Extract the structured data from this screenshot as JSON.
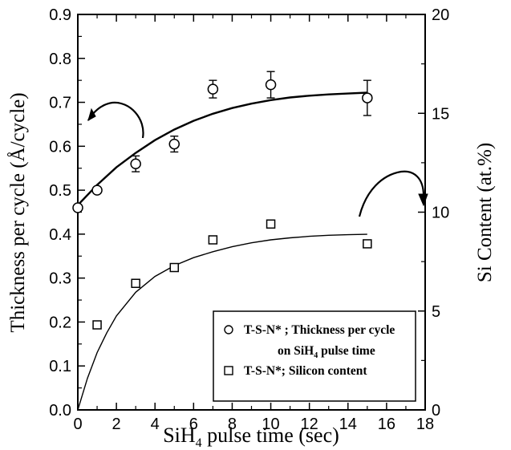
{
  "chart_data": {
    "type": "scatter",
    "xlabel": {
      "main": "SiH",
      "sub": "4",
      "rest": " pulse time (sec)"
    },
    "ylabel_left": "Thickness per cycle (Å/cycle)",
    "ylabel_right": "Si Content (at.%)",
    "xlim": [
      0,
      18
    ],
    "ylim_left": [
      0.0,
      0.9
    ],
    "ylim_right": [
      0,
      20
    ],
    "x_ticks": [
      "0",
      "2",
      "4",
      "6",
      "8",
      "10",
      "12",
      "14",
      "16",
      "18"
    ],
    "y_left_ticks": [
      "0.0",
      "0.1",
      "0.2",
      "0.3",
      "0.4",
      "0.5",
      "0.6",
      "0.7",
      "0.8",
      "0.9"
    ],
    "y_right_ticks": [
      "0",
      "5",
      "10",
      "15",
      "20"
    ],
    "grid": false,
    "legend_position": "bottom-right",
    "series": [
      {
        "name": "T-S-N* ; Thickness per cycle on SiH4 pulse time",
        "axis": "left",
        "marker": "circle",
        "x": [
          0,
          1,
          3,
          5,
          7,
          10,
          15
        ],
        "y": [
          0.46,
          0.5,
          0.56,
          0.605,
          0.73,
          0.74,
          0.71
        ],
        "yerr": [
          0.0,
          0.0,
          0.018,
          0.018,
          0.02,
          0.03,
          0.04
        ],
        "fit": [
          [
            0,
            0.466
          ],
          [
            1,
            0.512
          ],
          [
            2,
            0.552
          ],
          [
            3,
            0.585
          ],
          [
            4,
            0.614
          ],
          [
            5,
            0.638
          ],
          [
            6,
            0.658
          ],
          [
            7,
            0.674
          ],
          [
            8,
            0.687
          ],
          [
            9,
            0.697
          ],
          [
            10,
            0.705
          ],
          [
            11,
            0.711
          ],
          [
            12,
            0.715
          ],
          [
            13,
            0.718
          ],
          [
            14,
            0.72
          ],
          [
            15,
            0.722
          ]
        ]
      },
      {
        "name": "T-S-N*; Silicon content",
        "axis": "right",
        "marker": "square",
        "x": [
          1,
          3,
          5,
          7,
          10,
          15
        ],
        "y": [
          4.3,
          6.4,
          7.2,
          8.6,
          9.4,
          8.4
        ],
        "fit": [
          [
            0,
            0.0
          ],
          [
            0.5,
            1.6
          ],
          [
            1,
            2.9
          ],
          [
            1.5,
            3.9
          ],
          [
            2,
            4.75
          ],
          [
            3,
            5.95
          ],
          [
            4,
            6.75
          ],
          [
            5,
            7.3
          ],
          [
            6,
            7.7
          ],
          [
            7,
            8.0
          ],
          [
            8,
            8.25
          ],
          [
            9,
            8.45
          ],
          [
            10,
            8.6
          ],
          [
            11,
            8.7
          ],
          [
            12,
            8.78
          ],
          [
            13,
            8.83
          ],
          [
            14,
            8.86
          ],
          [
            15,
            8.88
          ]
        ]
      }
    ],
    "legend": [
      {
        "marker": "circle",
        "line1": "T-S-N* ; Thickness per cycle",
        "line2_main": "on SiH",
        "line2_sub": "4",
        "line2_rest": " pulse time"
      },
      {
        "marker": "square",
        "line1": "T-S-N*; Silicon content"
      }
    ]
  }
}
